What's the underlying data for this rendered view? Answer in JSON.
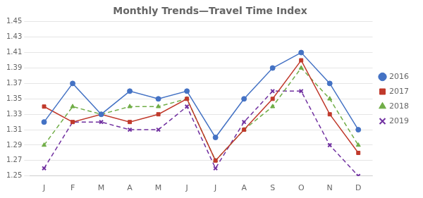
{
  "chart_data": {
    "type": "line",
    "title": "Monthly Trends—Travel Time Index",
    "categories": [
      "J",
      "F",
      "M",
      "A",
      "M",
      "J",
      "J",
      "A",
      "S",
      "O",
      "N",
      "D"
    ],
    "series": [
      {
        "name": "2016",
        "color": "#4472C4",
        "marker": "circle",
        "line_style": "solid",
        "values": [
          1.32,
          1.37,
          1.33,
          1.36,
          1.35,
          1.36,
          1.3,
          1.35,
          1.39,
          1.41,
          1.37,
          1.31
        ]
      },
      {
        "name": "2017",
        "color": "#C0392B",
        "marker": "square",
        "line_style": "solid",
        "values": [
          1.34,
          1.32,
          1.33,
          1.32,
          1.33,
          1.35,
          1.27,
          1.31,
          1.35,
          1.4,
          1.33,
          1.28
        ]
      },
      {
        "name": "2018",
        "color": "#70AD47",
        "marker": "triangle",
        "line_style": "dashed",
        "values": [
          1.29,
          1.34,
          1.33,
          1.34,
          1.34,
          1.35,
          1.27,
          1.31,
          1.34,
          1.39,
          1.35,
          1.29
        ]
      },
      {
        "name": "2019",
        "color": "#7030A0",
        "marker": "x",
        "line_style": "dashed",
        "values": [
          1.26,
          1.32,
          1.32,
          1.31,
          1.31,
          1.34,
          1.26,
          1.32,
          1.36,
          1.36,
          1.29,
          1.25
        ]
      }
    ],
    "ylim": [
      1.25,
      1.45
    ],
    "yticks": [
      1.25,
      1.27,
      1.29,
      1.31,
      1.33,
      1.35,
      1.37,
      1.39,
      1.41,
      1.43,
      1.45
    ],
    "grid": true,
    "legend": "right"
  }
}
